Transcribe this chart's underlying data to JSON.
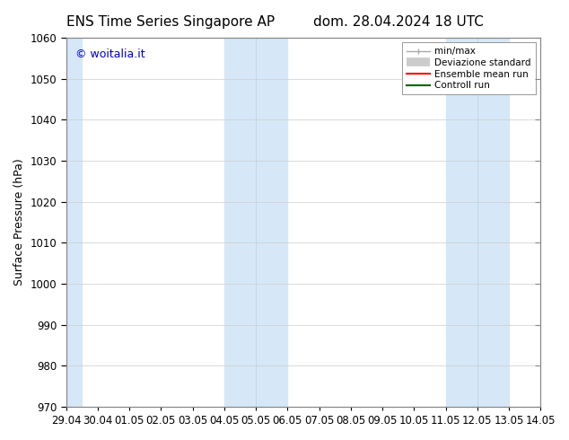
{
  "title_left": "ENS Time Series Singapore AP",
  "title_right": "dom. 28.04.2024 18 UTC",
  "ylabel": "Surface Pressure (hPa)",
  "ylim": [
    970,
    1060
  ],
  "yticks": [
    970,
    980,
    990,
    1000,
    1010,
    1020,
    1030,
    1040,
    1050,
    1060
  ],
  "xtick_labels": [
    "29.04",
    "30.04",
    "01.05",
    "02.05",
    "03.05",
    "04.05",
    "05.05",
    "06.05",
    "07.05",
    "08.05",
    "09.05",
    "10.05",
    "11.05",
    "12.05",
    "13.05",
    "14.05"
  ],
  "shaded_regions": [
    {
      "xstart": 0,
      "xend": 0.5,
      "color": "#d6e8f7"
    },
    {
      "xstart": 5,
      "xend": 7,
      "color": "#d6e8f7"
    },
    {
      "xstart": 12,
      "xend": 14,
      "color": "#d6e8f7"
    }
  ],
  "dividing_lines": [
    6,
    13
  ],
  "watermark_text": "© woitalia.it",
  "watermark_color": "#0000cc",
  "background_color": "#ffffff",
  "grid_color": "#cccccc",
  "title_fontsize": 11,
  "axis_fontsize": 9,
  "tick_fontsize": 8.5
}
